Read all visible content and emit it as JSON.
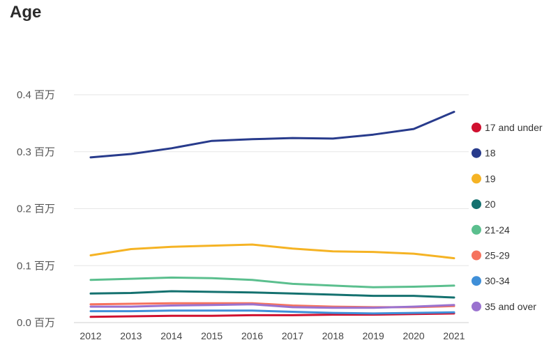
{
  "chart_data": {
    "type": "line",
    "title": "Age",
    "xlabel": "",
    "ylabel": "",
    "x": [
      2012,
      2013,
      2014,
      2015,
      2016,
      2017,
      2018,
      2019,
      2020,
      2021
    ],
    "ylim": [
      0,
      0.4
    ],
    "y_ticks": [
      {
        "value": 0.0,
        "label": "0.0 百万"
      },
      {
        "value": 0.1,
        "label": "0.1 百万"
      },
      {
        "value": 0.2,
        "label": "0.2 百万"
      },
      {
        "value": 0.3,
        "label": "0.3 百万"
      },
      {
        "value": 0.4,
        "label": "0.4 百万"
      }
    ],
    "grid": true,
    "legend_position": "right",
    "series": [
      {
        "name": "17 and under",
        "color": "#d0102f",
        "values": [
          0.01,
          0.011,
          0.012,
          0.012,
          0.013,
          0.013,
          0.014,
          0.014,
          0.015,
          0.016
        ]
      },
      {
        "name": "18",
        "color": "#283b8c",
        "values": [
          0.29,
          0.296,
          0.306,
          0.319,
          0.322,
          0.324,
          0.323,
          0.33,
          0.34,
          0.37
        ]
      },
      {
        "name": "19",
        "color": "#f5b324",
        "values": [
          0.118,
          0.129,
          0.133,
          0.135,
          0.137,
          0.13,
          0.125,
          0.124,
          0.121,
          0.113
        ]
      },
      {
        "name": "20",
        "color": "#14716f",
        "values": [
          0.051,
          0.052,
          0.055,
          0.054,
          0.053,
          0.051,
          0.049,
          0.047,
          0.047,
          0.044
        ]
      },
      {
        "name": "21-24",
        "color": "#5bbf8e",
        "values": [
          0.075,
          0.077,
          0.079,
          0.078,
          0.075,
          0.068,
          0.065,
          0.062,
          0.063,
          0.065
        ]
      },
      {
        "name": "25-29",
        "color": "#f5735e",
        "values": [
          0.032,
          0.033,
          0.034,
          0.034,
          0.034,
          0.03,
          0.028,
          0.027,
          0.027,
          0.029
        ]
      },
      {
        "name": "30-34",
        "color": "#3f8fd8",
        "values": [
          0.02,
          0.02,
          0.021,
          0.021,
          0.021,
          0.019,
          0.017,
          0.016,
          0.017,
          0.018
        ]
      },
      {
        "name": "35 and over",
        "color": "#9a72cf",
        "values": [
          0.028,
          0.028,
          0.03,
          0.031,
          0.032,
          0.027,
          0.026,
          0.026,
          0.028,
          0.031
        ]
      }
    ]
  }
}
